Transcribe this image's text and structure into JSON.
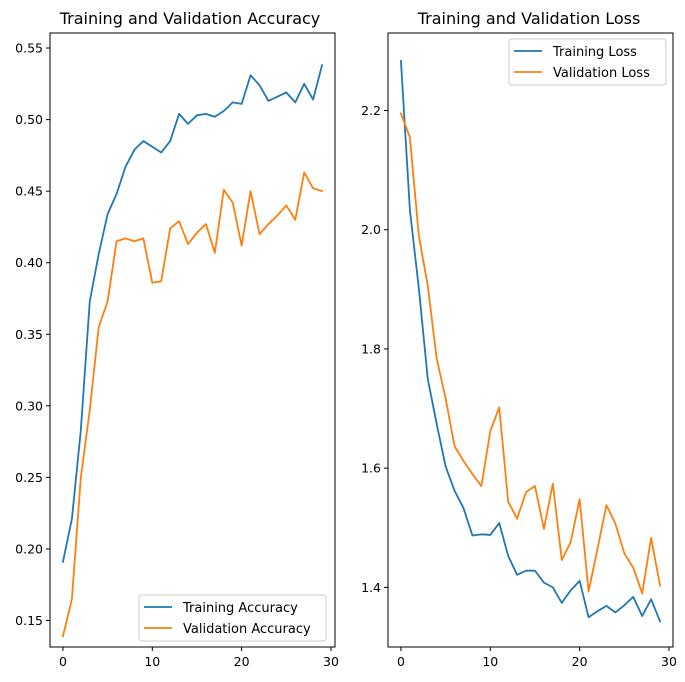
{
  "chart_data": [
    {
      "type": "line",
      "title": "Training and Validation Accuracy",
      "xlabel": "",
      "ylabel": "",
      "xlim": [
        -1.45,
        30.45
      ],
      "ylim": [
        0.1315,
        0.5605
      ],
      "xticks": [
        0,
        10,
        20,
        30
      ],
      "xtick_labels": [
        "0",
        "10",
        "20",
        "30"
      ],
      "yticks": [
        0.15,
        0.2,
        0.25,
        0.3,
        0.35,
        0.4,
        0.45,
        0.5,
        0.55
      ],
      "ytick_labels": [
        "0.15",
        "0.20",
        "0.25",
        "0.30",
        "0.35",
        "0.40",
        "0.45",
        "0.50",
        "0.55"
      ],
      "grid": false,
      "legend_position": "lower-right",
      "x": [
        0,
        1,
        2,
        3,
        4,
        5,
        6,
        7,
        8,
        9,
        10,
        11,
        12,
        13,
        14,
        15,
        16,
        17,
        18,
        19,
        20,
        21,
        22,
        23,
        24,
        25,
        26,
        27,
        28,
        29
      ],
      "series": [
        {
          "name": "Training Accuracy",
          "color": "#1f77b4",
          "values": [
            0.191,
            0.221,
            0.283,
            0.373,
            0.406,
            0.434,
            0.448,
            0.467,
            0.479,
            0.485,
            0.481,
            0.477,
            0.485,
            0.504,
            0.497,
            0.503,
            0.504,
            0.502,
            0.506,
            0.512,
            0.511,
            0.531,
            0.524,
            0.513,
            0.516,
            0.519,
            0.512,
            0.525,
            0.514,
            0.538
          ]
        },
        {
          "name": "Validation Accuracy",
          "color": "#ff7f0e",
          "values": [
            0.139,
            0.165,
            0.25,
            0.297,
            0.355,
            0.373,
            0.415,
            0.417,
            0.415,
            0.417,
            0.386,
            0.387,
            0.424,
            0.429,
            0.413,
            0.421,
            0.427,
            0.407,
            0.451,
            0.442,
            0.412,
            0.45,
            0.42,
            0.427,
            0.433,
            0.44,
            0.43,
            0.463,
            0.452,
            0.45
          ]
        }
      ]
    },
    {
      "type": "line",
      "title": "Training and Validation Loss",
      "xlabel": "",
      "ylabel": "",
      "xlim": [
        -1.45,
        30.45
      ],
      "ylim": [
        1.3,
        2.33
      ],
      "xticks": [
        0,
        10,
        20,
        30
      ],
      "xtick_labels": [
        "0",
        "10",
        "20",
        "30"
      ],
      "yticks": [
        1.4,
        1.6,
        1.8,
        2.0,
        2.2
      ],
      "ytick_labels": [
        "1.4",
        "1.6",
        "1.8",
        "2.0",
        "2.2"
      ],
      "grid": false,
      "legend_position": "top-right",
      "x": [
        0,
        1,
        2,
        3,
        4,
        5,
        6,
        7,
        8,
        9,
        10,
        11,
        12,
        13,
        14,
        15,
        16,
        17,
        18,
        19,
        20,
        21,
        22,
        23,
        24,
        25,
        26,
        27,
        28,
        29
      ],
      "series": [
        {
          "name": "Training Loss",
          "color": "#1f77b4",
          "values": [
            2.283,
            2.033,
            1.902,
            1.75,
            1.674,
            1.603,
            1.562,
            1.533,
            1.487,
            1.489,
            1.488,
            1.508,
            1.453,
            1.421,
            1.428,
            1.428,
            1.408,
            1.4,
            1.374,
            1.395,
            1.411,
            1.35,
            1.36,
            1.369,
            1.358,
            1.37,
            1.384,
            1.352,
            1.38,
            1.343
          ]
        },
        {
          "name": "Validation Loss",
          "color": "#ff7f0e",
          "values": [
            2.195,
            2.155,
            1.99,
            1.906,
            1.784,
            1.717,
            1.637,
            1.612,
            1.59,
            1.57,
            1.662,
            1.702,
            1.544,
            1.515,
            1.56,
            1.57,
            1.498,
            1.574,
            1.446,
            1.476,
            1.548,
            1.393,
            1.465,
            1.538,
            1.507,
            1.457,
            1.433,
            1.39,
            1.483,
            1.403
          ]
        }
      ]
    }
  ]
}
